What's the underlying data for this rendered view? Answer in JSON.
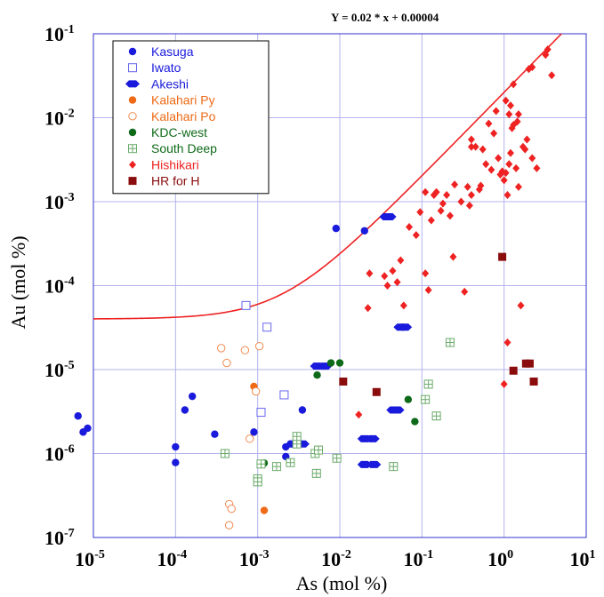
{
  "chart_data": {
    "type": "scatter",
    "title": "",
    "equation": "Y = 0.02 * x + 0.00004",
    "xlabel": "As (mol %)",
    "ylabel": "Au (mol %)",
    "x_scale": "log",
    "y_scale": "log",
    "xlim": [
      1e-05,
      10
    ],
    "ylim": [
      1e-07,
      0.1
    ],
    "x_ticks": [
      {
        "base": "10",
        "exp": "-5",
        "value": 1e-05
      },
      {
        "base": "10",
        "exp": "-4",
        "value": 0.0001
      },
      {
        "base": "10",
        "exp": "-3",
        "value": 0.001
      },
      {
        "base": "10",
        "exp": "-2",
        "value": 0.01
      },
      {
        "base": "10",
        "exp": "-1",
        "value": 0.1
      },
      {
        "base": "10",
        "exp": "0",
        "value": 1
      },
      {
        "base": "10",
        "exp": "1",
        "value": 10
      }
    ],
    "y_ticks": [
      {
        "base": "10",
        "exp": "-7",
        "value": 1e-07
      },
      {
        "base": "10",
        "exp": "-6",
        "value": 1e-06
      },
      {
        "base": "10",
        "exp": "-5",
        "value": 1e-05
      },
      {
        "base": "10",
        "exp": "-4",
        "value": 0.0001
      },
      {
        "base": "10",
        "exp": "-3",
        "value": 0.001
      },
      {
        "base": "10",
        "exp": "-2",
        "value": 0.01
      },
      {
        "base": "10",
        "exp": "-1",
        "value": 0.1
      }
    ],
    "grid": true,
    "legend_position": "top-left",
    "fit_line": {
      "slope": 0.02,
      "intercept": 4e-05,
      "color": "#ee2222"
    },
    "series": [
      {
        "name": "Kasuga",
        "marker": "circle",
        "color": "#1a1adc",
        "label_color": "#1a1adc",
        "points": [
          [
            6.5e-06,
            2.8e-06
          ],
          [
            7.5e-06,
            1.8e-06
          ],
          [
            8.5e-06,
            2e-06
          ],
          [
            0.0001,
            1.2e-06
          ],
          [
            0.0001,
            7.8e-07
          ],
          [
            0.00013,
            3.3e-06
          ],
          [
            0.00016,
            4.8e-06
          ],
          [
            0.0003,
            1.7e-06
          ],
          [
            0.0009,
            1.8e-06
          ],
          [
            0.0022,
            1.2e-06
          ],
          [
            0.0022,
            9.2e-07
          ],
          [
            0.0025,
            1.3e-06
          ],
          [
            0.0035,
            3.3e-06
          ],
          [
            0.009,
            0.00048
          ],
          [
            0.02,
            0.00045
          ]
        ]
      },
      {
        "name": "Iwato",
        "marker": "open-square",
        "color": "#6666ee",
        "label_color": "#1a1adc",
        "points": [
          [
            0.00072,
            5.8e-05
          ],
          [
            0.0011,
            3.1e-06
          ],
          [
            0.0013,
            3.2e-05
          ],
          [
            0.0021,
            5e-06
          ]
        ]
      },
      {
        "name": "Akeshi",
        "marker": "hexagon",
        "color": "#1a1adc",
        "label_color": "#1a1adc",
        "points": [
          [
            0.0053,
            1.1e-05
          ],
          [
            0.0066,
            1.1e-05
          ],
          [
            0.0028,
            1.3e-06
          ],
          [
            0.0035,
            1.3e-06
          ],
          [
            0.02,
            1.5e-06
          ],
          [
            0.025,
            1.5e-06
          ],
          [
            0.02,
            7.4e-07
          ],
          [
            0.026,
            7.4e-07
          ],
          [
            0.037,
            0.00066
          ],
          [
            0.04,
            0.00066
          ],
          [
            0.045,
            3.3e-06
          ],
          [
            0.05,
            3.3e-06
          ],
          [
            0.055,
            3.2e-05
          ],
          [
            0.062,
            3.2e-05
          ]
        ]
      },
      {
        "name": "Kalahari Py",
        "marker": "circle",
        "color": "#ee6a16",
        "label_color": "#ee6a16",
        "points": [
          [
            0.0009,
            6.3e-06
          ],
          [
            0.0012,
            2.1e-07
          ]
        ]
      },
      {
        "name": "Kalahari Po",
        "marker": "open-circle",
        "color": "#f08a50",
        "label_color": "#ee6a16",
        "points": [
          [
            0.00036,
            1.8e-05
          ],
          [
            0.00042,
            1.2e-05
          ],
          [
            0.00045,
            2.5e-07
          ],
          [
            0.00048,
            2.2e-07
          ],
          [
            0.00045,
            1.4e-07
          ],
          [
            0.0007,
            1.7e-05
          ],
          [
            0.0008,
            1.5e-06
          ],
          [
            0.00095,
            5.5e-06
          ],
          [
            0.00105,
            1.9e-05
          ]
        ]
      },
      {
        "name": "KDC-west",
        "marker": "circle",
        "color": "#0e6a18",
        "label_color": "#0e6a18",
        "points": [
          [
            0.0012,
            7.7e-07
          ],
          [
            0.0053,
            8.6e-06
          ],
          [
            0.0078,
            1.2e-05
          ],
          [
            0.01,
            1.2e-05
          ],
          [
            0.068,
            4.4e-06
          ],
          [
            0.082,
            2.4e-06
          ]
        ]
      },
      {
        "name": "South Deep",
        "marker": "open-square-plus",
        "color": "#6aaa6a",
        "label_color": "#0e6a18",
        "points": [
          [
            0.0004,
            1e-06
          ],
          [
            0.001,
            5e-07
          ],
          [
            0.001,
            4.6e-07
          ],
          [
            0.0011,
            7.5e-07
          ],
          [
            0.0017,
            7e-07
          ],
          [
            0.0025,
            7.8e-07
          ],
          [
            0.003,
            1.3e-06
          ],
          [
            0.003,
            1.6e-06
          ],
          [
            0.005,
            1e-06
          ],
          [
            0.0055,
            1.1e-06
          ],
          [
            0.0052,
            5.8e-07
          ],
          [
            0.0092,
            8.8e-07
          ],
          [
            0.045,
            7e-07
          ],
          [
            0.11,
            4.4e-06
          ],
          [
            0.12,
            6.7e-06
          ],
          [
            0.15,
            2.8e-06
          ],
          [
            0.22,
            2.1e-05
          ]
        ]
      },
      {
        "name": "Hishikari",
        "marker": "diamond",
        "color": "#ee2222",
        "label_color": "#ee2222",
        "points": [
          [
            0.017,
            2.9e-06
          ],
          [
            0.022,
            5.4e-05
          ],
          [
            0.023,
            0.00014
          ],
          [
            0.035,
            0.00013
          ],
          [
            0.038,
            0.0001
          ],
          [
            0.044,
            0.00015
          ],
          [
            0.05,
            0.00011
          ],
          [
            0.055,
            0.0002
          ],
          [
            0.06,
            5.8e-05
          ],
          [
            0.07,
            0.0005
          ],
          [
            0.085,
            0.0004
          ],
          [
            0.095,
            0.00075
          ],
          [
            0.11,
            0.00014
          ],
          [
            0.12,
            8.85e-05
          ],
          [
            0.11,
            0.0013
          ],
          [
            0.13,
            0.0006
          ],
          [
            0.14,
            0.0012
          ],
          [
            0.15,
            0.0013
          ],
          [
            0.17,
            0.00078
          ],
          [
            0.18,
            0.00095
          ],
          [
            0.2,
            0.0012
          ],
          [
            0.22,
            0.00068
          ],
          [
            0.24,
            0.00022
          ],
          [
            0.25,
            0.0016
          ],
          [
            0.3,
            0.001
          ],
          [
            0.33,
            8.45e-05
          ],
          [
            0.36,
            0.0015
          ],
          [
            0.38,
            0.0009
          ],
          [
            0.4,
            0.0012
          ],
          [
            0.4,
            0.0045
          ],
          [
            0.4,
            0.0055
          ],
          [
            0.45,
            0.0045
          ],
          [
            0.5,
            0.0014
          ],
          [
            0.52,
            0.00155
          ],
          [
            0.55,
            0.0042
          ],
          [
            0.6,
            0.0028
          ],
          [
            0.65,
            0.0085
          ],
          [
            0.7,
            0.0024
          ],
          [
            0.75,
            0.0065
          ],
          [
            0.8,
            0.012
          ],
          [
            0.85,
            0.0033
          ],
          [
            0.9,
            0.0021
          ],
          [
            0.95,
            0.0023
          ],
          [
            1.0,
            0.0018
          ],
          [
            1.05,
            0.0022
          ],
          [
            1.1,
            0.0012
          ],
          [
            1.15,
            0.0028
          ],
          [
            1.2,
            0.0038
          ],
          [
            1.25,
            0.0075
          ],
          [
            1.3,
            0.0082
          ],
          [
            1.4,
            0.0025
          ],
          [
            1.45,
            0.009
          ],
          [
            1.5,
            0.0015
          ],
          [
            1.6,
            5.8e-05
          ],
          [
            1.7,
            0.0045
          ],
          [
            1.8,
            0.0042
          ],
          [
            1.9,
            0.0055
          ],
          [
            2.2,
            0.0033
          ],
          [
            2.5,
            0.0025
          ],
          [
            1.1,
            2.1e-05
          ],
          [
            1.0,
            6.7e-06
          ],
          [
            1.05,
            0.016
          ],
          [
            1.15,
            0.011
          ],
          [
            1.2,
            0.014
          ],
          [
            1.3,
            0.025
          ],
          [
            1.5,
            0.011
          ],
          [
            2.0,
            0.038
          ],
          [
            2.2,
            0.04
          ],
          [
            3.2,
            0.056
          ],
          [
            3.4,
            0.065
          ],
          [
            3.8,
            0.032
          ]
        ]
      },
      {
        "name": "HR for H",
        "marker": "square",
        "color": "#8a0c0c",
        "label_color": "#8a0c0c",
        "points": [
          [
            0.011,
            7.2e-06
          ],
          [
            0.028,
            5.4e-06
          ],
          [
            0.95,
            0.00022
          ],
          [
            1.3,
            9.7e-06
          ],
          [
            1.85,
            1.18e-05
          ],
          [
            2.05,
            1.18e-05
          ],
          [
            2.3,
            7.2e-06
          ]
        ]
      }
    ]
  }
}
